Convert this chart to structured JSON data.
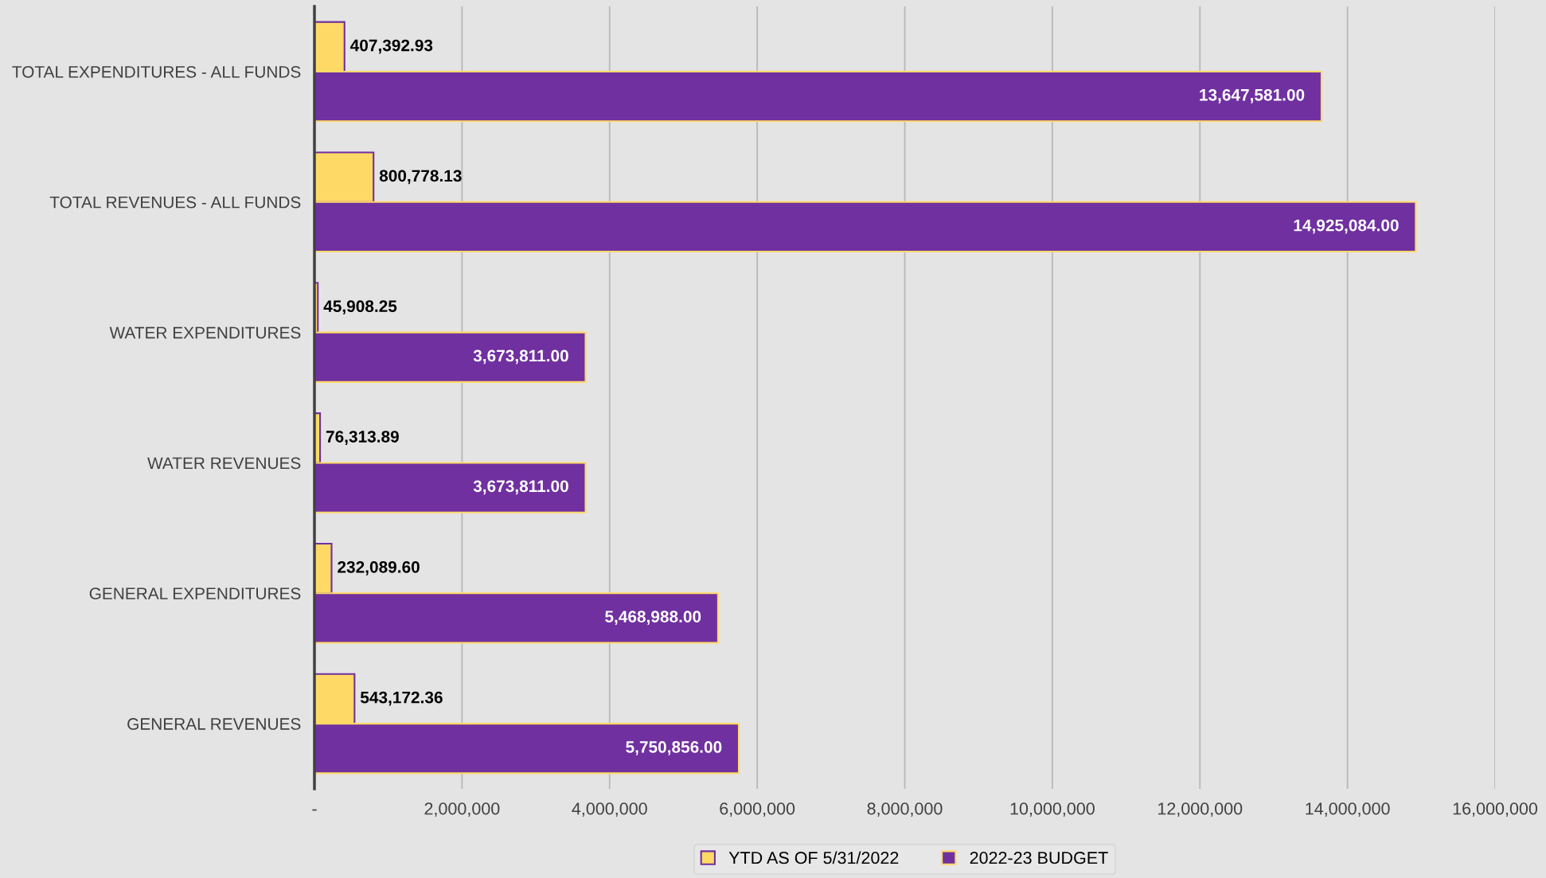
{
  "chart_data": {
    "type": "bar",
    "orientation": "horizontal",
    "categories": [
      "TOTAL EXPENDITURES - ALL FUNDS",
      "TOTAL REVENUES - ALL FUNDS",
      "WATER EXPENDITURES",
      "WATER REVENUES",
      "GENERAL EXPENDITURES",
      "GENERAL REVENUES"
    ],
    "series": [
      {
        "name": "YTD AS OF 5/31/2022",
        "color": "#ffd966",
        "values": [
          407392.93,
          800778.13,
          45908.25,
          76313.89,
          232089.6,
          543172.36
        ],
        "value_labels": [
          "407,392.93",
          "800,778.13",
          "45,908.25",
          "76,313.89",
          "232,089.60",
          "543,172.36"
        ]
      },
      {
        "name": "2022-23 BUDGET",
        "color": "#7030a0",
        "values": [
          13647581.0,
          14925084.0,
          3673811.0,
          3673811.0,
          5468988.0,
          5750856.0
        ],
        "value_labels": [
          "13,647,581.00",
          "14,925,084.00",
          "3,673,811.00",
          "3,673,811.00",
          "5,468,988.00",
          "5,750,856.00"
        ]
      }
    ],
    "xlim": [
      0,
      16000000
    ],
    "xticks": [
      {
        "value": 0,
        "label": "-"
      },
      {
        "value": 2000000,
        "label": "2,000,000"
      },
      {
        "value": 4000000,
        "label": "4,000,000"
      },
      {
        "value": 6000000,
        "label": "6,000,000"
      },
      {
        "value": 8000000,
        "label": "8,000,000"
      },
      {
        "value": 10000000,
        "label": "10,000,000"
      },
      {
        "value": 12000000,
        "label": "12,000,000"
      },
      {
        "value": 14000000,
        "label": "14,000,000"
      },
      {
        "value": 16000000,
        "label": "16,000,000"
      }
    ],
    "grid": "x",
    "legend": "bottom"
  }
}
